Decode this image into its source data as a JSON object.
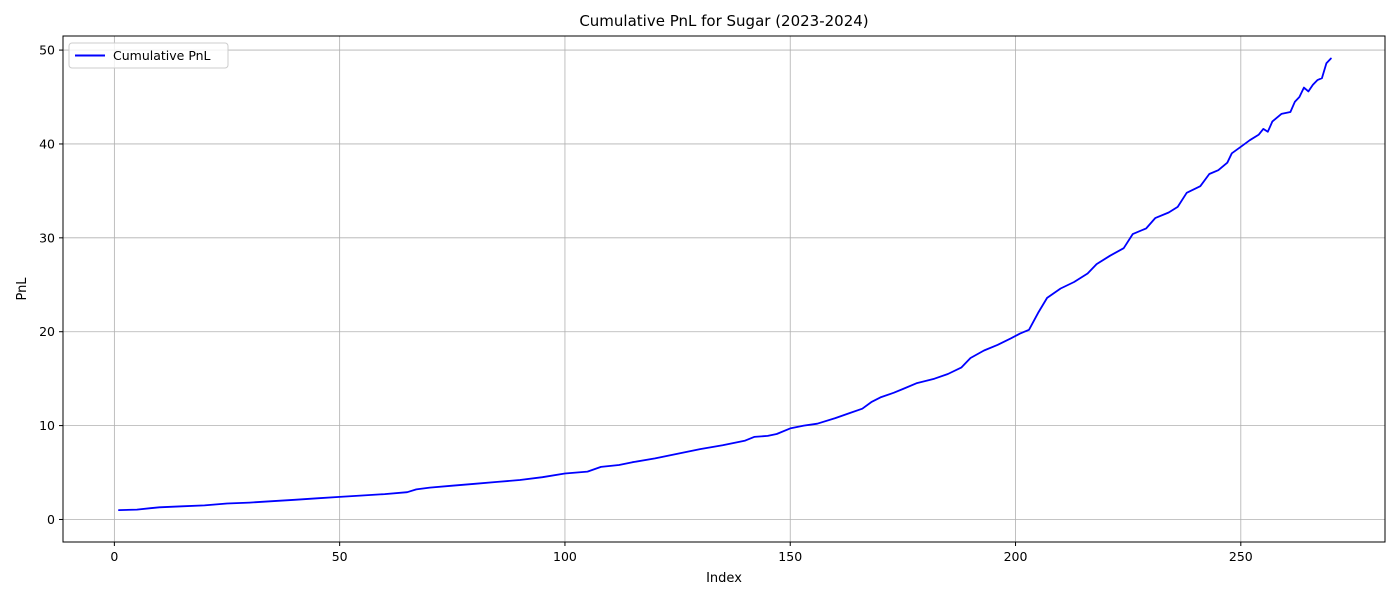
{
  "chart_data": {
    "type": "line",
    "title": "Cumulative PnL for Sugar (2023-2024)",
    "xlabel": "Index",
    "ylabel": "PnL",
    "xlim": [
      -11.4,
      282
    ],
    "ylim": [
      -2.4,
      51.5
    ],
    "xticks": [
      0,
      50,
      100,
      150,
      200,
      250
    ],
    "yticks": [
      0,
      10,
      20,
      30,
      40,
      50
    ],
    "grid": true,
    "legend_position": "upper-left",
    "series": [
      {
        "name": "Cumulative PnL",
        "color": "#0000ff",
        "points": [
          [
            1,
            1.0
          ],
          [
            5,
            1.05
          ],
          [
            8,
            1.2
          ],
          [
            10,
            1.3
          ],
          [
            15,
            1.4
          ],
          [
            20,
            1.5
          ],
          [
            25,
            1.7
          ],
          [
            30,
            1.8
          ],
          [
            35,
            1.95
          ],
          [
            40,
            2.1
          ],
          [
            45,
            2.25
          ],
          [
            50,
            2.4
          ],
          [
            55,
            2.55
          ],
          [
            60,
            2.7
          ],
          [
            65,
            2.9
          ],
          [
            67,
            3.2
          ],
          [
            70,
            3.4
          ],
          [
            75,
            3.6
          ],
          [
            80,
            3.8
          ],
          [
            85,
            4.0
          ],
          [
            90,
            4.2
          ],
          [
            95,
            4.5
          ],
          [
            100,
            4.9
          ],
          [
            105,
            5.1
          ],
          [
            108,
            5.6
          ],
          [
            112,
            5.8
          ],
          [
            115,
            6.1
          ],
          [
            120,
            6.5
          ],
          [
            125,
            7.0
          ],
          [
            130,
            7.5
          ],
          [
            135,
            7.9
          ],
          [
            140,
            8.4
          ],
          [
            142,
            8.8
          ],
          [
            145,
            8.9
          ],
          [
            147,
            9.1
          ],
          [
            150,
            9.7
          ],
          [
            153,
            10.0
          ],
          [
            156,
            10.2
          ],
          [
            160,
            10.8
          ],
          [
            163,
            11.3
          ],
          [
            166,
            11.8
          ],
          [
            168,
            12.5
          ],
          [
            170,
            13.0
          ],
          [
            173,
            13.5
          ],
          [
            175,
            13.9
          ],
          [
            178,
            14.5
          ],
          [
            182,
            15.0
          ],
          [
            185,
            15.5
          ],
          [
            188,
            16.2
          ],
          [
            190,
            17.2
          ],
          [
            193,
            18.0
          ],
          [
            196,
            18.6
          ],
          [
            199,
            19.3
          ],
          [
            201,
            19.8
          ],
          [
            203,
            20.2
          ],
          [
            205,
            22.0
          ],
          [
            207,
            23.6
          ],
          [
            210,
            24.6
          ],
          [
            213,
            25.3
          ],
          [
            216,
            26.2
          ],
          [
            218,
            27.2
          ],
          [
            221,
            28.1
          ],
          [
            224,
            28.9
          ],
          [
            226,
            30.4
          ],
          [
            229,
            31.0
          ],
          [
            231,
            32.1
          ],
          [
            234,
            32.7
          ],
          [
            236,
            33.3
          ],
          [
            238,
            34.8
          ],
          [
            241,
            35.5
          ],
          [
            243,
            36.8
          ],
          [
            245,
            37.2
          ],
          [
            247,
            38.0
          ],
          [
            248,
            39.0
          ],
          [
            250,
            39.7
          ],
          [
            252,
            40.4
          ],
          [
            254,
            41.0
          ],
          [
            255,
            41.6
          ],
          [
            256,
            41.3
          ],
          [
            257,
            42.4
          ],
          [
            259,
            43.2
          ],
          [
            261,
            43.4
          ],
          [
            262,
            44.5
          ],
          [
            263,
            45.0
          ],
          [
            264,
            46.0
          ],
          [
            265,
            45.6
          ],
          [
            266,
            46.3
          ],
          [
            267,
            46.8
          ],
          [
            268,
            47.0
          ],
          [
            269,
            48.6
          ],
          [
            270,
            49.1
          ]
        ]
      }
    ]
  }
}
